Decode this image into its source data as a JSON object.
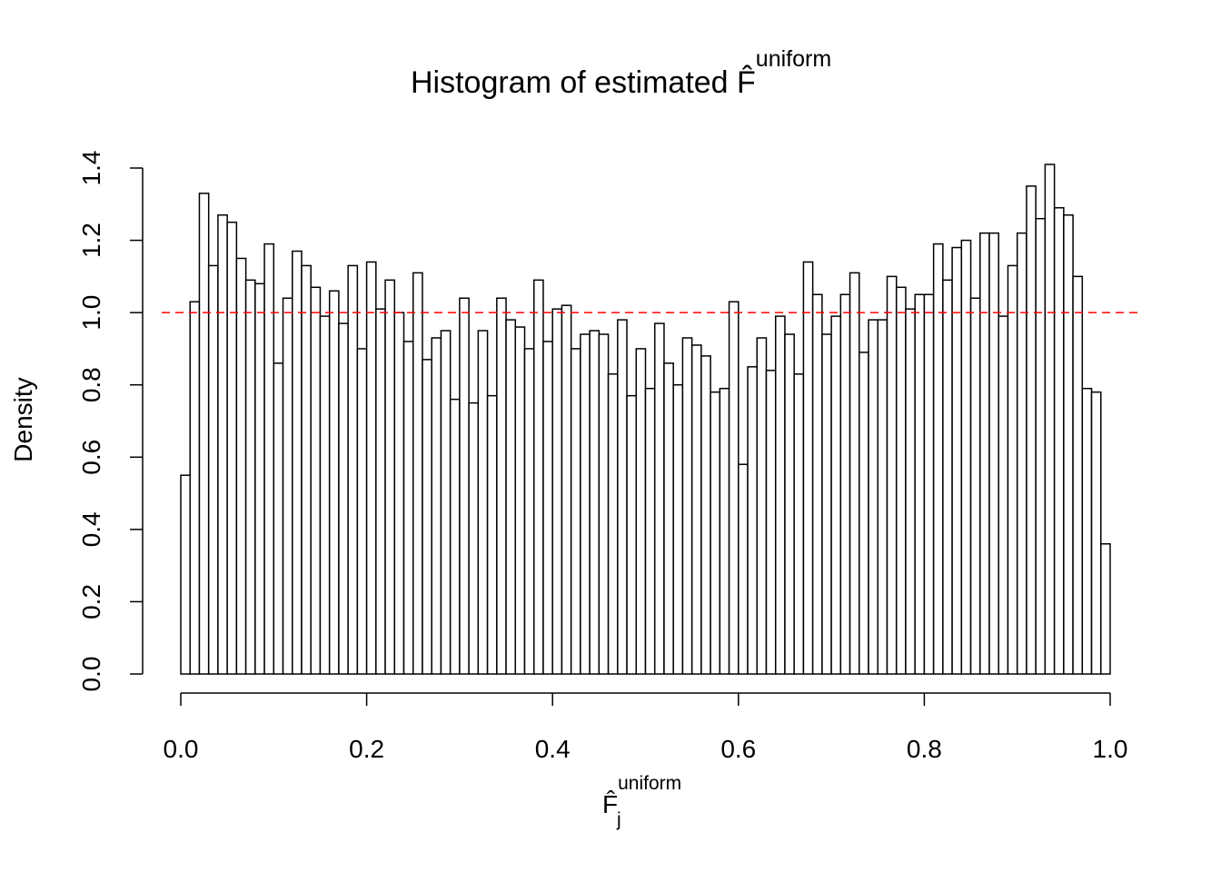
{
  "chart_data": {
    "type": "histogram",
    "title": {
      "text": "Histogram of estimated F̂",
      "sup": "uniform"
    },
    "x_label": {
      "base": "F̂",
      "sup": "uniform",
      "sub": "j"
    },
    "y_label": "Density",
    "bins": [
      0,
      0.01,
      0.02,
      0.03,
      0.04,
      0.05,
      0.06,
      0.07,
      0.08,
      0.09,
      0.1,
      0.11,
      0.12,
      0.13,
      0.14,
      0.15,
      0.16,
      0.17,
      0.18,
      0.19,
      0.2,
      0.21,
      0.22,
      0.23,
      0.24,
      0.25,
      0.26,
      0.27,
      0.28,
      0.29,
      0.3,
      0.31,
      0.32,
      0.33,
      0.34,
      0.35,
      0.36,
      0.37,
      0.38,
      0.39,
      0.4,
      0.41,
      0.42,
      0.43,
      0.44,
      0.45,
      0.46,
      0.47,
      0.48,
      0.49,
      0.5,
      0.51,
      0.52,
      0.53,
      0.54,
      0.55,
      0.56,
      0.57,
      0.58,
      0.59,
      0.6,
      0.61,
      0.62,
      0.63,
      0.64,
      0.65,
      0.66,
      0.67,
      0.68,
      0.69,
      0.7,
      0.71,
      0.72,
      0.73,
      0.74,
      0.75,
      0.76,
      0.77,
      0.78,
      0.79,
      0.8,
      0.81,
      0.82,
      0.83,
      0.84,
      0.85,
      0.86,
      0.87,
      0.88,
      0.89,
      0.9,
      0.91,
      0.92,
      0.93,
      0.94,
      0.95,
      0.96,
      0.97,
      0.98,
      0.99,
      1
    ],
    "values": [
      0.55,
      1.03,
      1.33,
      1.13,
      1.27,
      1.25,
      1.15,
      1.09,
      1.08,
      1.19,
      0.86,
      1.04,
      1.17,
      1.13,
      1.07,
      0.99,
      1.06,
      0.97,
      1.13,
      0.9,
      1.14,
      1.01,
      1.09,
      1.0,
      0.92,
      1.11,
      0.87,
      0.93,
      0.95,
      0.76,
      1.04,
      0.75,
      0.95,
      0.77,
      1.04,
      0.98,
      0.96,
      0.9,
      1.09,
      0.92,
      1.01,
      1.02,
      0.9,
      0.94,
      0.95,
      0.94,
      0.83,
      0.98,
      0.77,
      0.9,
      0.79,
      0.97,
      0.86,
      0.8,
      0.93,
      0.91,
      0.88,
      0.78,
      0.79,
      1.03,
      0.58,
      0.85,
      0.93,
      0.84,
      0.99,
      0.94,
      0.83,
      1.14,
      1.05,
      0.94,
      0.99,
      1.05,
      1.11,
      0.89,
      0.98,
      0.98,
      1.1,
      1.07,
      1.01,
      1.05,
      1.05,
      1.19,
      1.09,
      1.18,
      1.2,
      1.04,
      1.22,
      1.22,
      0.99,
      1.13,
      1.22,
      1.35,
      1.26,
      1.41,
      1.29,
      1.27,
      1.1,
      0.79,
      0.78,
      0.36
    ],
    "color": "#ffffff",
    "edge_color": "#000000",
    "xlim": [
      0,
      1
    ],
    "ylim": [
      0,
      1.4
    ],
    "xticks": [
      {
        "value": 0,
        "label": "0.0"
      },
      0.2,
      0.4,
      0.6,
      0.8,
      {
        "value": 1,
        "label": "1.0"
      }
    ],
    "yticks": [
      {
        "value": 0,
        "label": "0.0"
      },
      0.2,
      0.4,
      0.6,
      0.8,
      {
        "value": 1,
        "label": "1.0"
      },
      1.2,
      1.4
    ],
    "hline": {
      "value": 1,
      "color": "#ff0000",
      "dashed": true
    }
  }
}
